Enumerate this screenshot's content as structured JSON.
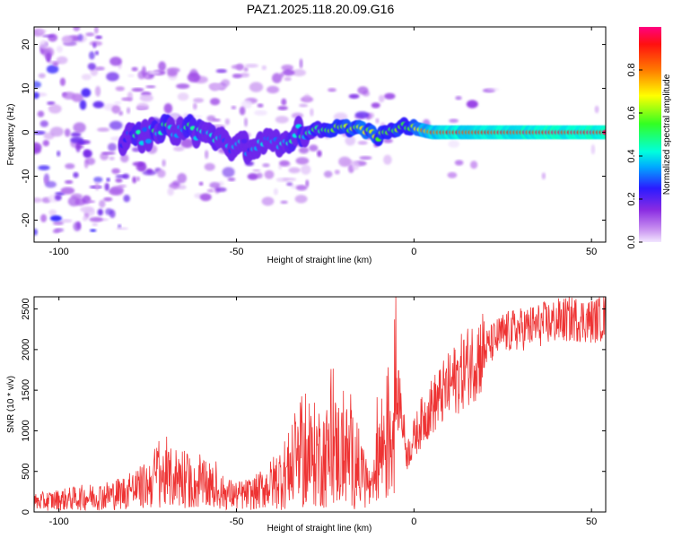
{
  "title": "PAZ1.2025.118.20.09.G16",
  "chart_data": [
    {
      "type": "heatmap",
      "xlabel": "Height of straight line (km)",
      "ylabel": "Frequency (Hz)",
      "xlim": [
        -107,
        54
      ],
      "ylim": [
        -25,
        24
      ],
      "x_ticks": [
        -100,
        -50,
        0,
        50
      ],
      "y_ticks": [
        -20,
        -10,
        0,
        10,
        20
      ],
      "colorbar": {
        "label": "Normalized spectral amplitude",
        "range": [
          0,
          1
        ],
        "ticks": [
          0.0,
          0.2,
          0.4,
          0.6,
          0.8
        ],
        "tick_labels": [
          "0.0",
          "0.2",
          "0.4",
          "0.6",
          "0.8"
        ]
      },
      "ridge": [
        {
          "x": -80,
          "y": -1.5,
          "v": 0.35
        },
        {
          "x": -72,
          "y": 0.0,
          "v": 0.45
        },
        {
          "x": -65,
          "y": 1.0,
          "v": 0.42
        },
        {
          "x": -58,
          "y": -0.5,
          "v": 0.38
        },
        {
          "x": -50,
          "y": -3.5,
          "v": 0.32
        },
        {
          "x": -42,
          "y": -3.0,
          "v": 0.3
        },
        {
          "x": -32,
          "y": 0.0,
          "v": 0.45
        },
        {
          "x": -22,
          "y": 1.0,
          "v": 0.55
        },
        {
          "x": -15,
          "y": 1.0,
          "v": 0.65
        },
        {
          "x": -10,
          "y": -1.0,
          "v": 0.6
        },
        {
          "x": -3,
          "y": 1.5,
          "v": 0.55
        },
        {
          "x": 5,
          "y": 0.0,
          "v": 0.85
        },
        {
          "x": 20,
          "y": 0.0,
          "v": 0.9
        },
        {
          "x": 40,
          "y": 0.0,
          "v": 0.92
        },
        {
          "x": 54,
          "y": 0.0,
          "v": 0.95
        }
      ]
    },
    {
      "type": "line",
      "xlabel": "Height of straight line (km)",
      "ylabel": "SNR (10 * v/v)",
      "xlim": [
        -107,
        54
      ],
      "ylim": [
        0,
        2650
      ],
      "x_ticks": [
        -100,
        -50,
        0,
        50
      ],
      "y_ticks": [
        0,
        500,
        1000,
        1500,
        2000,
        2500
      ],
      "color": "#ee3333",
      "series": [
        {
          "x": [
            -107,
            -100,
            -95,
            -90,
            -85,
            -80,
            -75,
            -72,
            -70,
            -68,
            -65,
            -62,
            -60,
            -57,
            -55,
            -50,
            -45,
            -40,
            -35,
            -32,
            -30,
            -28,
            -25,
            -22,
            -20,
            -18,
            -15,
            -13,
            -12,
            -11,
            -10,
            -8,
            -6,
            -5,
            -4,
            -3,
            -2,
            0,
            2,
            5,
            10,
            15,
            20,
            25,
            30,
            35,
            40,
            45,
            50,
            54
          ],
          "y": [
            120,
            150,
            170,
            190,
            210,
            260,
            330,
            480,
            400,
            420,
            450,
            300,
            350,
            280,
            250,
            200,
            230,
            350,
            520,
            650,
            600,
            700,
            680,
            750,
            700,
            680,
            500,
            350,
            200,
            400,
            700,
            900,
            1050,
            1300,
            1400,
            1050,
            700,
            900,
            1100,
            1300,
            1550,
            1800,
            2000,
            2200,
            2250,
            2300,
            2350,
            2380,
            2350,
            2400
          ]
        }
      ]
    }
  ]
}
